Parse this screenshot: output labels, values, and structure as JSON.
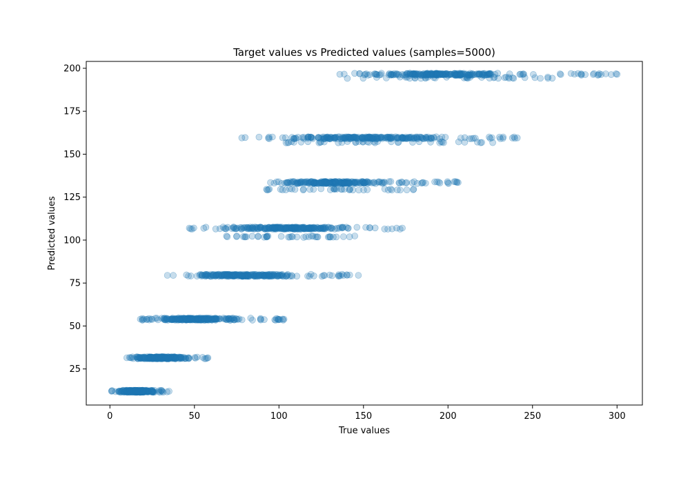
{
  "chart_data": {
    "type": "scatter",
    "title": "Target values vs Predicted values (samples=5000)",
    "xlabel": "True values",
    "ylabel": "Predicted values",
    "xlim": [
      -14,
      315
    ],
    "ylim": [
      4,
      204
    ],
    "xticks": [
      0,
      50,
      100,
      150,
      200,
      250,
      300
    ],
    "yticks": [
      25,
      50,
      75,
      100,
      125,
      150,
      175,
      200
    ],
    "grid": false,
    "legend": "none",
    "marker_color": "#1f77b4",
    "marker_opacity": 0.25,
    "clusters": [
      {
        "y": 12,
        "x_min": 1,
        "x_max": 35,
        "x_core": [
          5,
          28
        ],
        "extra_rows": []
      },
      {
        "y": 31.5,
        "x_min": 10,
        "x_max": 58,
        "x_core": [
          15,
          45
        ],
        "extra_rows": []
      },
      {
        "y": 54,
        "x_min": 18,
        "x_max": 103,
        "x_core": [
          25,
          80
        ],
        "extra_rows": []
      },
      {
        "y": 79.5,
        "x_min": 34,
        "x_max": 147,
        "x_core": [
          45,
          110
        ],
        "extra_rows": []
      },
      {
        "y": 107,
        "x_min": 47,
        "x_max": 173,
        "x_core": [
          70,
          140
        ],
        "extra_rows": [
          {
            "y": 102,
            "x_min": 66,
            "x_max": 145
          }
        ]
      },
      {
        "y": 133.5,
        "x_min": 95,
        "x_max": 206,
        "x_core": [
          100,
          165
        ],
        "extra_rows": [
          {
            "y": 129.5,
            "x_min": 91,
            "x_max": 180
          }
        ]
      },
      {
        "y": 159.5,
        "x_min": 78,
        "x_max": 241,
        "x_core": [
          105,
          200
        ],
        "extra_rows": [
          {
            "y": 157,
            "x_min": 101,
            "x_max": 230
          }
        ]
      },
      {
        "y": 196.5,
        "x_min": 136,
        "x_max": 300,
        "x_core": [
          150,
          235
        ],
        "extra_rows": [
          {
            "y": 194.5,
            "x_min": 136,
            "x_max": 262
          }
        ]
      }
    ]
  }
}
